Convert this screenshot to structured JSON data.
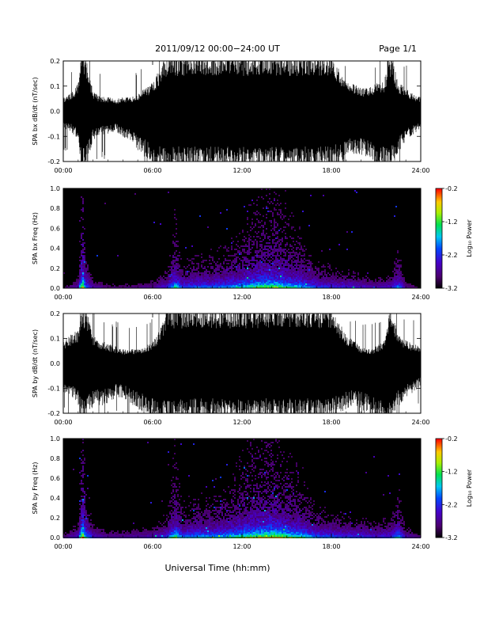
{
  "header": {
    "title": "2011/09/12  00:00−24:00 UT",
    "page": "Page 1/1"
  },
  "x_axis_title": "Universal Time (hh:mm)",
  "colors": {
    "signal": "#000000",
    "background": "#000000"
  },
  "colorbar": {
    "label": "Log₁₀ Power",
    "tick_labels": [
      "-0.2",
      "-1.2",
      "-2.2",
      "-3.2"
    ],
    "range": [
      -3.2,
      -0.2
    ],
    "colormap": "rainbow (black-purple-blue-cyan-green-yellow-orange-red)"
  },
  "chart_data": [
    {
      "type": "line",
      "title": "",
      "ylabel": "SPA bx dB/dt (nT/sec)",
      "xlabel": "",
      "xlim": [
        "00:00",
        "24:00"
      ],
      "ylim": [
        -0.2,
        0.2
      ],
      "x_ticks": [
        "00:00",
        "06:00",
        "12:00",
        "18:00",
        "24:00"
      ],
      "y_ticks": [
        "0.2",
        "0.1",
        "0.0",
        "-0.1",
        "-0.2"
      ],
      "envelope": {
        "hours": [
          0,
          0.5,
          1,
          1.2,
          1.5,
          2,
          2.5,
          3,
          3.5,
          4,
          4.5,
          5,
          5.5,
          6,
          6.5,
          7,
          8,
          9,
          10,
          11,
          12,
          13,
          14,
          15,
          16,
          17,
          18,
          18.5,
          19,
          19.5,
          20,
          20.5,
          21,
          21.5,
          22,
          22.5,
          23,
          23.5,
          24
        ],
        "upper": [
          0.05,
          0.06,
          0.1,
          0.2,
          0.2,
          0.07,
          0.05,
          0.05,
          0.04,
          0.05,
          0.05,
          0.06,
          0.08,
          0.1,
          0.15,
          0.2,
          0.2,
          0.2,
          0.2,
          0.2,
          0.2,
          0.2,
          0.2,
          0.2,
          0.2,
          0.2,
          0.2,
          0.15,
          0.1,
          0.1,
          0.08,
          0.08,
          0.1,
          0.1,
          0.2,
          0.1,
          0.08,
          0.06,
          0.05
        ],
        "lower": [
          -0.06,
          -0.07,
          -0.1,
          -0.2,
          -0.2,
          -0.1,
          -0.08,
          -0.08,
          -0.07,
          -0.09,
          -0.1,
          -0.14,
          -0.16,
          -0.2,
          -0.2,
          -0.2,
          -0.2,
          -0.2,
          -0.2,
          -0.2,
          -0.2,
          -0.2,
          -0.2,
          -0.2,
          -0.2,
          -0.2,
          -0.2,
          -0.18,
          -0.16,
          -0.15,
          -0.15,
          -0.16,
          -0.2,
          -0.2,
          -0.2,
          -0.15,
          -0.1,
          -0.08,
          -0.06
        ]
      }
    },
    {
      "type": "heatmap",
      "title": "",
      "ylabel": "SPA bx Freq (Hz)",
      "xlabel": "",
      "xlim": [
        "00:00",
        "24:00"
      ],
      "ylim": [
        0.0,
        1.0
      ],
      "x_ticks": [
        "00:00",
        "06:00",
        "12:00",
        "18:00",
        "24:00"
      ],
      "y_ticks": [
        "1.0",
        "0.8",
        "0.6",
        "0.4",
        "0.2",
        "0.0"
      ],
      "zlim": [
        -3.2,
        -0.2
      ],
      "activity_profile": {
        "hours": [
          0,
          1,
          1.3,
          1.5,
          2,
          3,
          4,
          5,
          6,
          7,
          7.5,
          8,
          9,
          10,
          11,
          12,
          13,
          14,
          15,
          16,
          17,
          18,
          19,
          20,
          21,
          22,
          22.5,
          23,
          24
        ],
        "level": [
          0.15,
          0.3,
          1.0,
          0.55,
          0.3,
          0.2,
          0.2,
          0.22,
          0.25,
          0.4,
          0.7,
          0.45,
          0.5,
          0.5,
          0.55,
          0.65,
          0.75,
          0.8,
          0.7,
          0.6,
          0.45,
          0.4,
          0.38,
          0.35,
          0.3,
          0.35,
          0.55,
          0.25,
          0.15
        ]
      }
    },
    {
      "type": "line",
      "title": "",
      "ylabel": "SPA by dB/dt (nT/sec)",
      "xlabel": "",
      "xlim": [
        "00:00",
        "24:00"
      ],
      "ylim": [
        -0.2,
        0.2
      ],
      "x_ticks": [
        "00:00",
        "06:00",
        "12:00",
        "18:00",
        "24:00"
      ],
      "y_ticks": [
        "0.2",
        "0.1",
        "0.0",
        "-0.1",
        "-0.2"
      ],
      "envelope": {
        "hours": [
          0,
          0.5,
          1,
          1.2,
          1.5,
          2,
          2.5,
          3,
          3.5,
          4,
          4.5,
          5,
          5.5,
          6,
          6.5,
          7,
          8,
          9,
          10,
          11,
          12,
          13,
          14,
          15,
          16,
          17,
          18,
          18.5,
          19,
          19.5,
          20,
          20.5,
          21,
          21.5,
          22,
          22.5,
          23,
          23.5,
          24
        ],
        "upper": [
          0.08,
          0.1,
          0.12,
          0.2,
          0.2,
          0.1,
          0.08,
          0.07,
          0.06,
          0.05,
          0.05,
          0.05,
          0.06,
          0.08,
          0.12,
          0.2,
          0.2,
          0.2,
          0.2,
          0.2,
          0.2,
          0.2,
          0.2,
          0.2,
          0.2,
          0.2,
          0.2,
          0.15,
          0.1,
          0.08,
          0.06,
          0.05,
          0.06,
          0.08,
          0.2,
          0.1,
          0.08,
          0.07,
          0.06
        ],
        "lower": [
          -0.1,
          -0.12,
          -0.15,
          -0.2,
          -0.2,
          -0.15,
          -0.15,
          -0.14,
          -0.12,
          -0.12,
          -0.14,
          -0.16,
          -0.18,
          -0.2,
          -0.2,
          -0.2,
          -0.2,
          -0.2,
          -0.2,
          -0.2,
          -0.2,
          -0.2,
          -0.2,
          -0.2,
          -0.2,
          -0.2,
          -0.2,
          -0.18,
          -0.16,
          -0.15,
          -0.16,
          -0.18,
          -0.2,
          -0.2,
          -0.2,
          -0.15,
          -0.12,
          -0.1,
          -0.08
        ]
      }
    },
    {
      "type": "heatmap",
      "title": "",
      "ylabel": "SPA by Freq (Hz)",
      "xlabel": "",
      "xlim": [
        "00:00",
        "24:00"
      ],
      "ylim": [
        0.0,
        1.0
      ],
      "x_ticks": [
        "00:00",
        "06:00",
        "12:00",
        "18:00",
        "24:00"
      ],
      "y_ticks": [
        "1.0",
        "0.8",
        "0.6",
        "0.4",
        "0.2",
        "0.0"
      ],
      "zlim": [
        -3.2,
        -0.2
      ],
      "activity_profile": {
        "hours": [
          0,
          1,
          1.3,
          1.5,
          2,
          3,
          4,
          5,
          6,
          7,
          7.5,
          8,
          9,
          10,
          11,
          12,
          13,
          14,
          15,
          16,
          17,
          18,
          19,
          20,
          21,
          22,
          22.5,
          23,
          24
        ],
        "level": [
          0.2,
          0.35,
          1.0,
          0.6,
          0.35,
          0.25,
          0.25,
          0.28,
          0.3,
          0.45,
          0.75,
          0.5,
          0.55,
          0.55,
          0.6,
          0.7,
          0.8,
          0.85,
          0.75,
          0.65,
          0.5,
          0.45,
          0.42,
          0.4,
          0.35,
          0.4,
          0.6,
          0.3,
          0.2
        ]
      }
    }
  ]
}
